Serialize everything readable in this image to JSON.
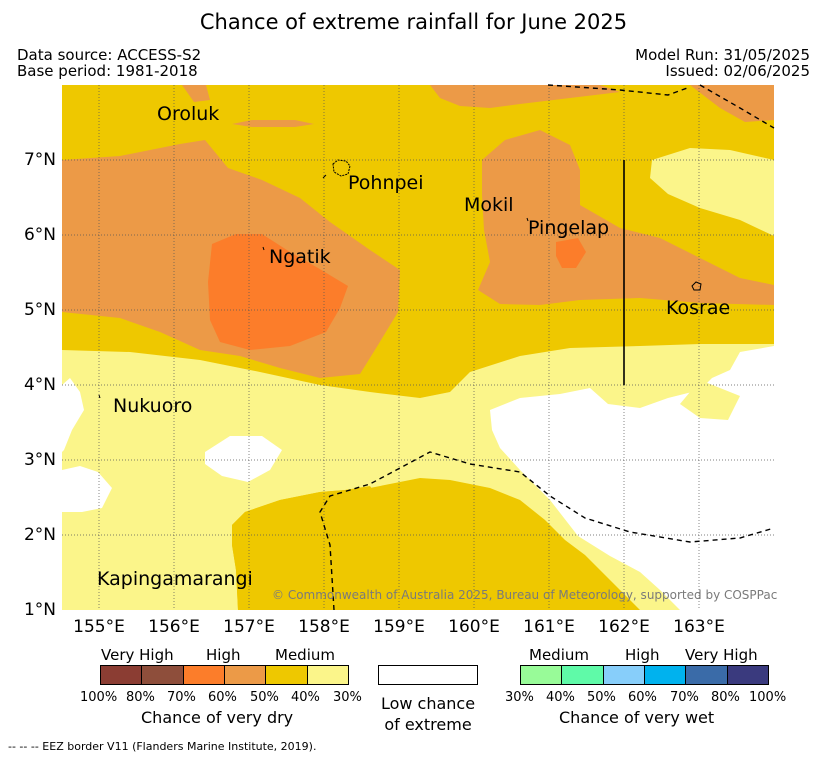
{
  "header": {
    "title": "Chance of extreme rainfall for June 2025",
    "data_source": "Data source: ACCESS-S2",
    "base_period": "Base period: 1981-2018",
    "model_run": "Model Run: 31/05/2025",
    "issued": "Issued: 02/06/2025"
  },
  "map": {
    "lon_ticks": [
      "155°E",
      "156°E",
      "157°E",
      "158°E",
      "159°E",
      "160°E",
      "161°E",
      "162°E",
      "163°E"
    ],
    "lat_ticks": [
      "7°N",
      "6°N",
      "5°N",
      "4°N",
      "3°N",
      "2°N",
      "1°N"
    ],
    "places": {
      "oroluk": "Oroluk",
      "pohnpei": "Pohnpei",
      "mokil": "Mokil",
      "pingelap": "Pingelap",
      "ngatik": "Ngatik",
      "kosrae": "Kosrae",
      "nukuoro": "Nukuoro",
      "kapingamarangi": "Kapingamarangi"
    },
    "credit": "© Commonwealth of Australia 2025, Bureau of Meteorology, supported by COSPPac",
    "colors": {
      "medium_dry": "#eec800",
      "low_dry": "#fbf58a",
      "high_dry_light": "#ec9a47",
      "high_dry": "#fc7d2a",
      "no_signal": "#ffffff"
    }
  },
  "legend": {
    "dry": {
      "categories": [
        "Very High",
        "High",
        "Medium"
      ],
      "ticks": [
        "100%",
        "80%",
        "70%",
        "60%",
        "50%",
        "40%",
        "30%"
      ],
      "colors": [
        "#8b3d33",
        "#8e4e3b",
        "#fc7d2a",
        "#ec9a47",
        "#eec800",
        "#fbf58a"
      ],
      "title": "Chance of very dry"
    },
    "low": {
      "line1": "Low chance",
      "line2": "of extreme"
    },
    "wet": {
      "categories": [
        "Medium",
        "High",
        "Very High"
      ],
      "ticks": [
        "30%",
        "40%",
        "50%",
        "60%",
        "70%",
        "80%",
        "100%"
      ],
      "colors": [
        "#98fb98",
        "#5ffaa8",
        "#87cefa",
        "#00b2ee",
        "#3a6ba8",
        "#3a3a7e"
      ],
      "title": "Chance of very wet"
    }
  },
  "footnote": "--  --  -- EEZ border V11 (Flanders Marine Institute, 2019)."
}
